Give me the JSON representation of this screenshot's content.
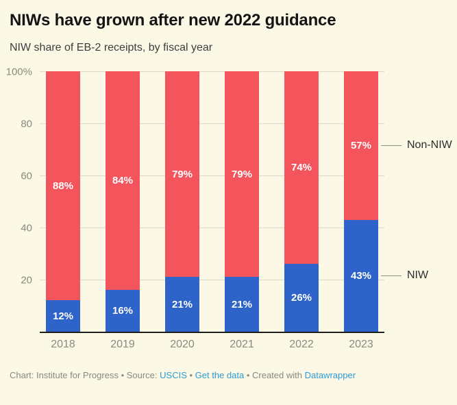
{
  "header": {
    "title": "NIWs have grown after new 2022 guidance",
    "subtitle": "NIW share of EB-2 receipts, by fiscal year"
  },
  "chart_data": {
    "type": "bar",
    "stacked": true,
    "title": "NIWs have grown after new 2022 guidance",
    "subtitle": "NIW share of EB-2 receipts, by fiscal year",
    "categories": [
      "2018",
      "2019",
      "2020",
      "2021",
      "2022",
      "2023"
    ],
    "series": [
      {
        "name": "NIW",
        "color": "#2e63c9",
        "values": [
          12,
          16,
          21,
          21,
          26,
          43
        ]
      },
      {
        "name": "Non-NIW",
        "color": "#f4555c",
        "values": [
          88,
          84,
          79,
          79,
          74,
          57
        ]
      }
    ],
    "value_suffix": "%",
    "ylim": [
      0,
      100
    ],
    "yticks": [
      {
        "value": 100,
        "label": "100%"
      },
      {
        "value": 80,
        "label": "80"
      },
      {
        "value": 60,
        "label": "60"
      },
      {
        "value": 40,
        "label": "40"
      },
      {
        "value": 20,
        "label": "20"
      }
    ],
    "grid": true,
    "legend_position": "right-of-last-bar",
    "annotations": [
      {
        "label": "Non-NIW",
        "series": "Non-NIW"
      },
      {
        "label": "NIW",
        "series": "NIW"
      }
    ]
  },
  "colors": {
    "background": "#fbf8e6",
    "niw_blue": "#2e63c9",
    "non_niw_red": "#f4555c",
    "gridline": "#dcd9c8",
    "axis_text": "#8c8a7e",
    "link_blue": "#2d9ad2"
  },
  "footer": {
    "parts": [
      {
        "text": "Chart: Institute for Progress • Source: ",
        "link": false
      },
      {
        "text": "USCIS",
        "link": true
      },
      {
        "text": " • ",
        "link": false
      },
      {
        "text": "Get the data",
        "link": true
      },
      {
        "text": " • Created with ",
        "link": false
      },
      {
        "text": "Datawrapper",
        "link": true
      }
    ]
  }
}
